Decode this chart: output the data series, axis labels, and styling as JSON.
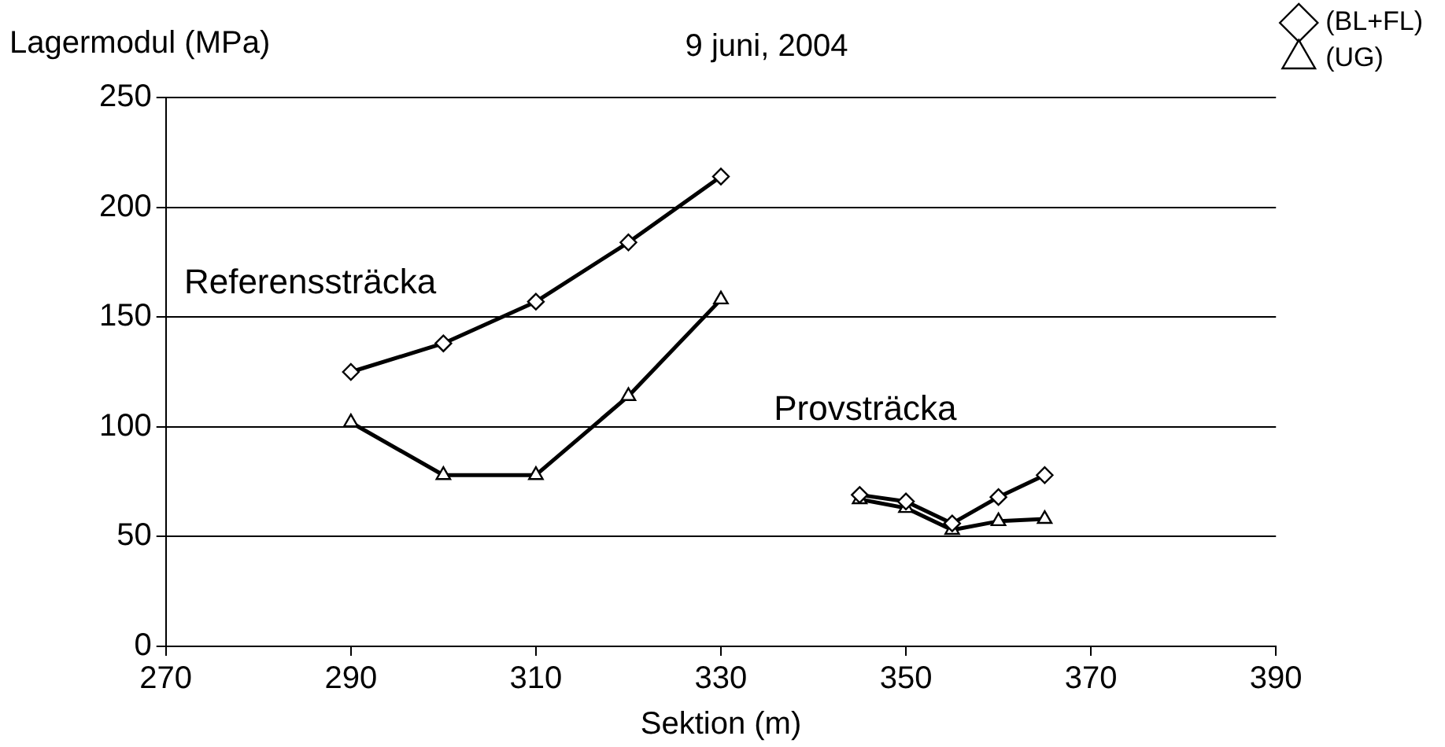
{
  "chart_data": {
    "type": "line",
    "title": "9 juni, 2004",
    "xlabel": "Sektion (m)",
    "ylabel": "Lagermodul (MPa)",
    "xlim": [
      270,
      390
    ],
    "xticks": [
      270,
      290,
      310,
      330,
      350,
      370,
      390
    ],
    "ylim": [
      0,
      250
    ],
    "yticks": [
      0,
      50,
      100,
      150,
      200,
      250
    ],
    "grid": "y",
    "legend": "top right",
    "line_style": "solid",
    "series": [
      {
        "name": "(BL+FL)",
        "color": "#000000",
        "marker": "diamond",
        "x": [
          290,
          300,
          310,
          320,
          330
        ],
        "values": [
          125,
          138,
          157,
          184,
          214
        ]
      },
      {
        "name": "(UG)",
        "color": "#000000",
        "marker": "triangle",
        "x": [
          290,
          300,
          310,
          320,
          330
        ],
        "values": [
          102,
          78,
          78,
          114,
          158
        ]
      },
      {
        "color": "#000000",
        "marker": "diamond",
        "x": [
          345,
          350,
          355,
          360,
          365
        ],
        "values": [
          69,
          66,
          56,
          68,
          78
        ]
      },
      {
        "color": "#000000",
        "marker": "triangle",
        "x": [
          345,
          350,
          355,
          360,
          365
        ],
        "values": [
          67,
          63,
          53,
          57,
          58
        ]
      }
    ],
    "annotations": [
      "Referenssträcka",
      "Provsträcka"
    ]
  }
}
